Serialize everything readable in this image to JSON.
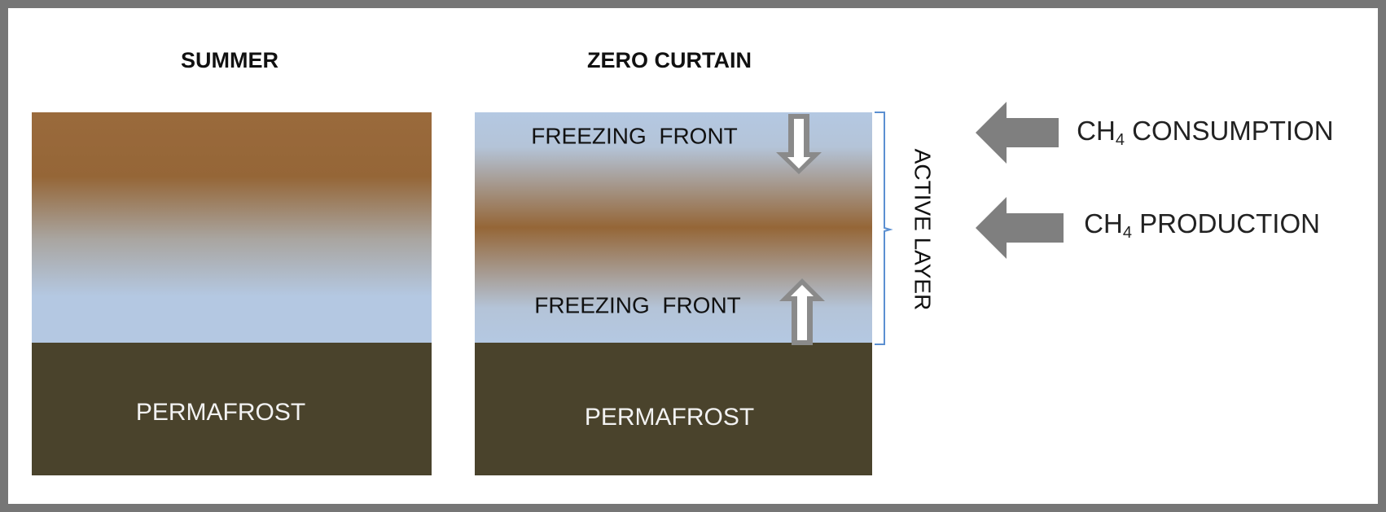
{
  "panels": [
    {
      "title": "SUMMER",
      "base": "PERMAFROST"
    },
    {
      "title": "ZERO CURTAIN",
      "base": "PERMAFROST",
      "fronts": [
        "FREEZING  FRONT",
        "FREEZING  FRONT"
      ]
    }
  ],
  "bracket_label": "ACTIVE LAYER",
  "fluxes": [
    {
      "formula": "CH",
      "subscript": "4",
      "label": " CONSUMPTION"
    },
    {
      "formula": "CH",
      "subscript": "4",
      "label": " PRODUCTION"
    }
  ]
}
